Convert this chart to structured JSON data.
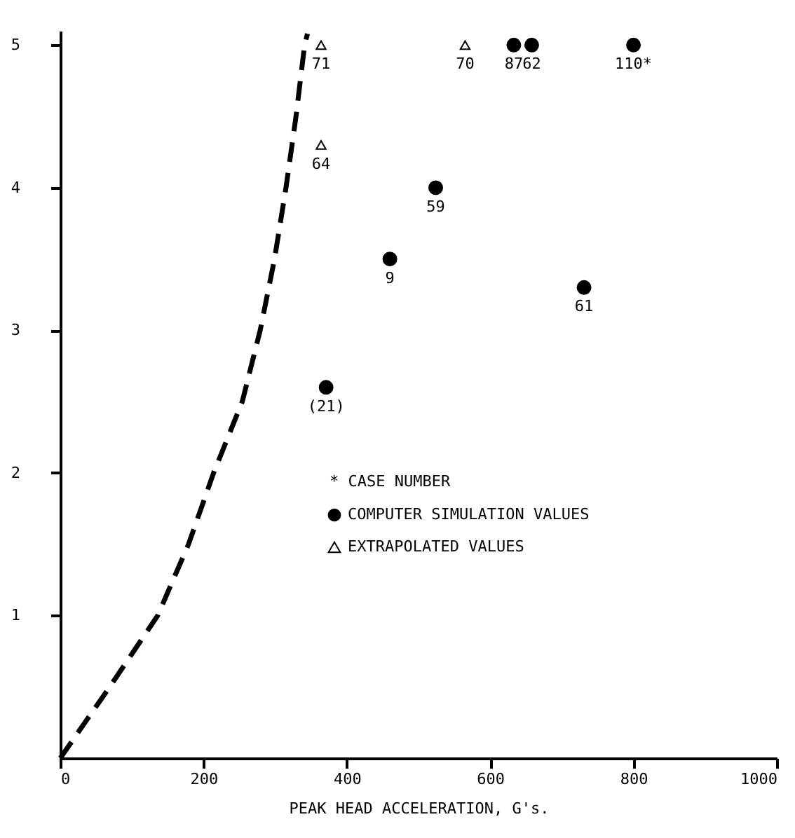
{
  "chart_data": {
    "type": "scatter",
    "xlabel": "PEAK HEAD ACCELERATION, G's.",
    "xlim": [
      0,
      1000
    ],
    "xticks": [
      0,
      200,
      400,
      600,
      800,
      1000
    ],
    "ylim": [
      0,
      5.1
    ],
    "yticks": [
      1,
      2,
      3,
      4,
      5
    ],
    "legend": "right",
    "series": [
      {
        "name": "COMPUTER SIMULATION VALUES",
        "marker": "circle",
        "color": "#000000",
        "x": [
          633,
          658,
          800,
          524,
          460,
          731,
          371
        ],
        "values": [
          5,
          5,
          5,
          4.0,
          3.5,
          3.3,
          2.6
        ]
      },
      {
        "name": "EXTRAPOLATED VALUES",
        "marker": "triangle",
        "color": "#000000",
        "x": [
          364,
          364,
          565
        ],
        "values": [
          5,
          4.3,
          5
        ]
      },
      {
        "type": "line",
        "line_style": "dashed",
        "color": "#000000",
        "x": [
          0,
          69,
          136,
          179,
          214,
          254,
          279,
          299,
          315,
          329,
          341,
          345
        ],
        "values": [
          0,
          0.5,
          1,
          1.5,
          2,
          2.5,
          3,
          3.5,
          4,
          4.5,
          5,
          5.08
        ]
      }
    ],
    "annotations": [
      {
        "text": "71",
        "x": 364,
        "y": 5
      },
      {
        "text": "64",
        "x": 364,
        "y": 4.3
      },
      {
        "text": "70",
        "x": 565,
        "y": 5
      },
      {
        "text": "87",
        "x": 633,
        "y": 5
      },
      {
        "text": "62",
        "x": 658,
        "y": 5
      },
      {
        "text": "110*",
        "x": 800,
        "y": 5
      },
      {
        "text": "59",
        "x": 524,
        "y": 4.0
      },
      {
        "text": "9",
        "x": 460,
        "y": 3.5
      },
      {
        "text": "61",
        "x": 731,
        "y": 3.3
      },
      {
        "text": "(21)",
        "x": 371,
        "y": 2.6
      },
      "* CASE NUMBER"
    ]
  }
}
